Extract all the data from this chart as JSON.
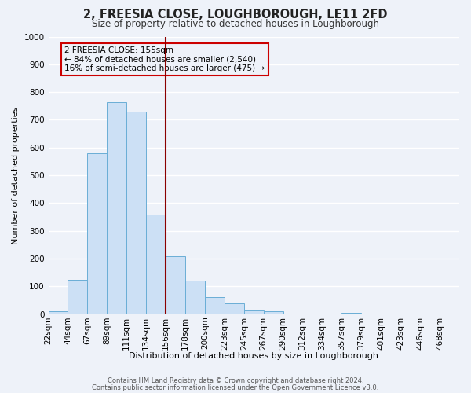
{
  "title": "2, FREESIA CLOSE, LOUGHBOROUGH, LE11 2FD",
  "subtitle": "Size of property relative to detached houses in Loughborough",
  "xlabel": "Distribution of detached houses by size in Loughborough",
  "ylabel": "Number of detached properties",
  "bar_values": [
    10,
    125,
    580,
    765,
    730,
    360,
    210,
    120,
    62,
    40,
    15,
    12,
    2,
    0,
    0,
    5,
    0,
    2,
    0,
    0,
    0
  ],
  "all_labels": [
    "22sqm",
    "44sqm",
    "67sqm",
    "89sqm",
    "111sqm",
    "134sqm",
    "156sqm",
    "178sqm",
    "200sqm",
    "223sqm",
    "245sqm",
    "267sqm",
    "290sqm",
    "312sqm",
    "334sqm",
    "357sqm",
    "379sqm",
    "401sqm",
    "423sqm",
    "446sqm",
    "468sqm"
  ],
  "bar_color_fill": "#cce0f5",
  "bar_color_edge": "#6aaed6",
  "vline_color": "#8b0000",
  "annotation_title": "2 FREESIA CLOSE: 155sqm",
  "annotation_line1": "← 84% of detached houses are smaller (2,540)",
  "annotation_line2": "16% of semi-detached houses are larger (475) →",
  "annotation_box_color": "#cc0000",
  "ylim": [
    0,
    1000
  ],
  "yticks": [
    0,
    100,
    200,
    300,
    400,
    500,
    600,
    700,
    800,
    900,
    1000
  ],
  "footer1": "Contains HM Land Registry data © Crown copyright and database right 2024.",
  "footer2": "Contains public sector information licensed under the Open Government Licence v3.0.",
  "bg_color": "#eef2f9",
  "grid_color": "#ffffff",
  "vline_bar_index": 6,
  "n_bins": 21
}
